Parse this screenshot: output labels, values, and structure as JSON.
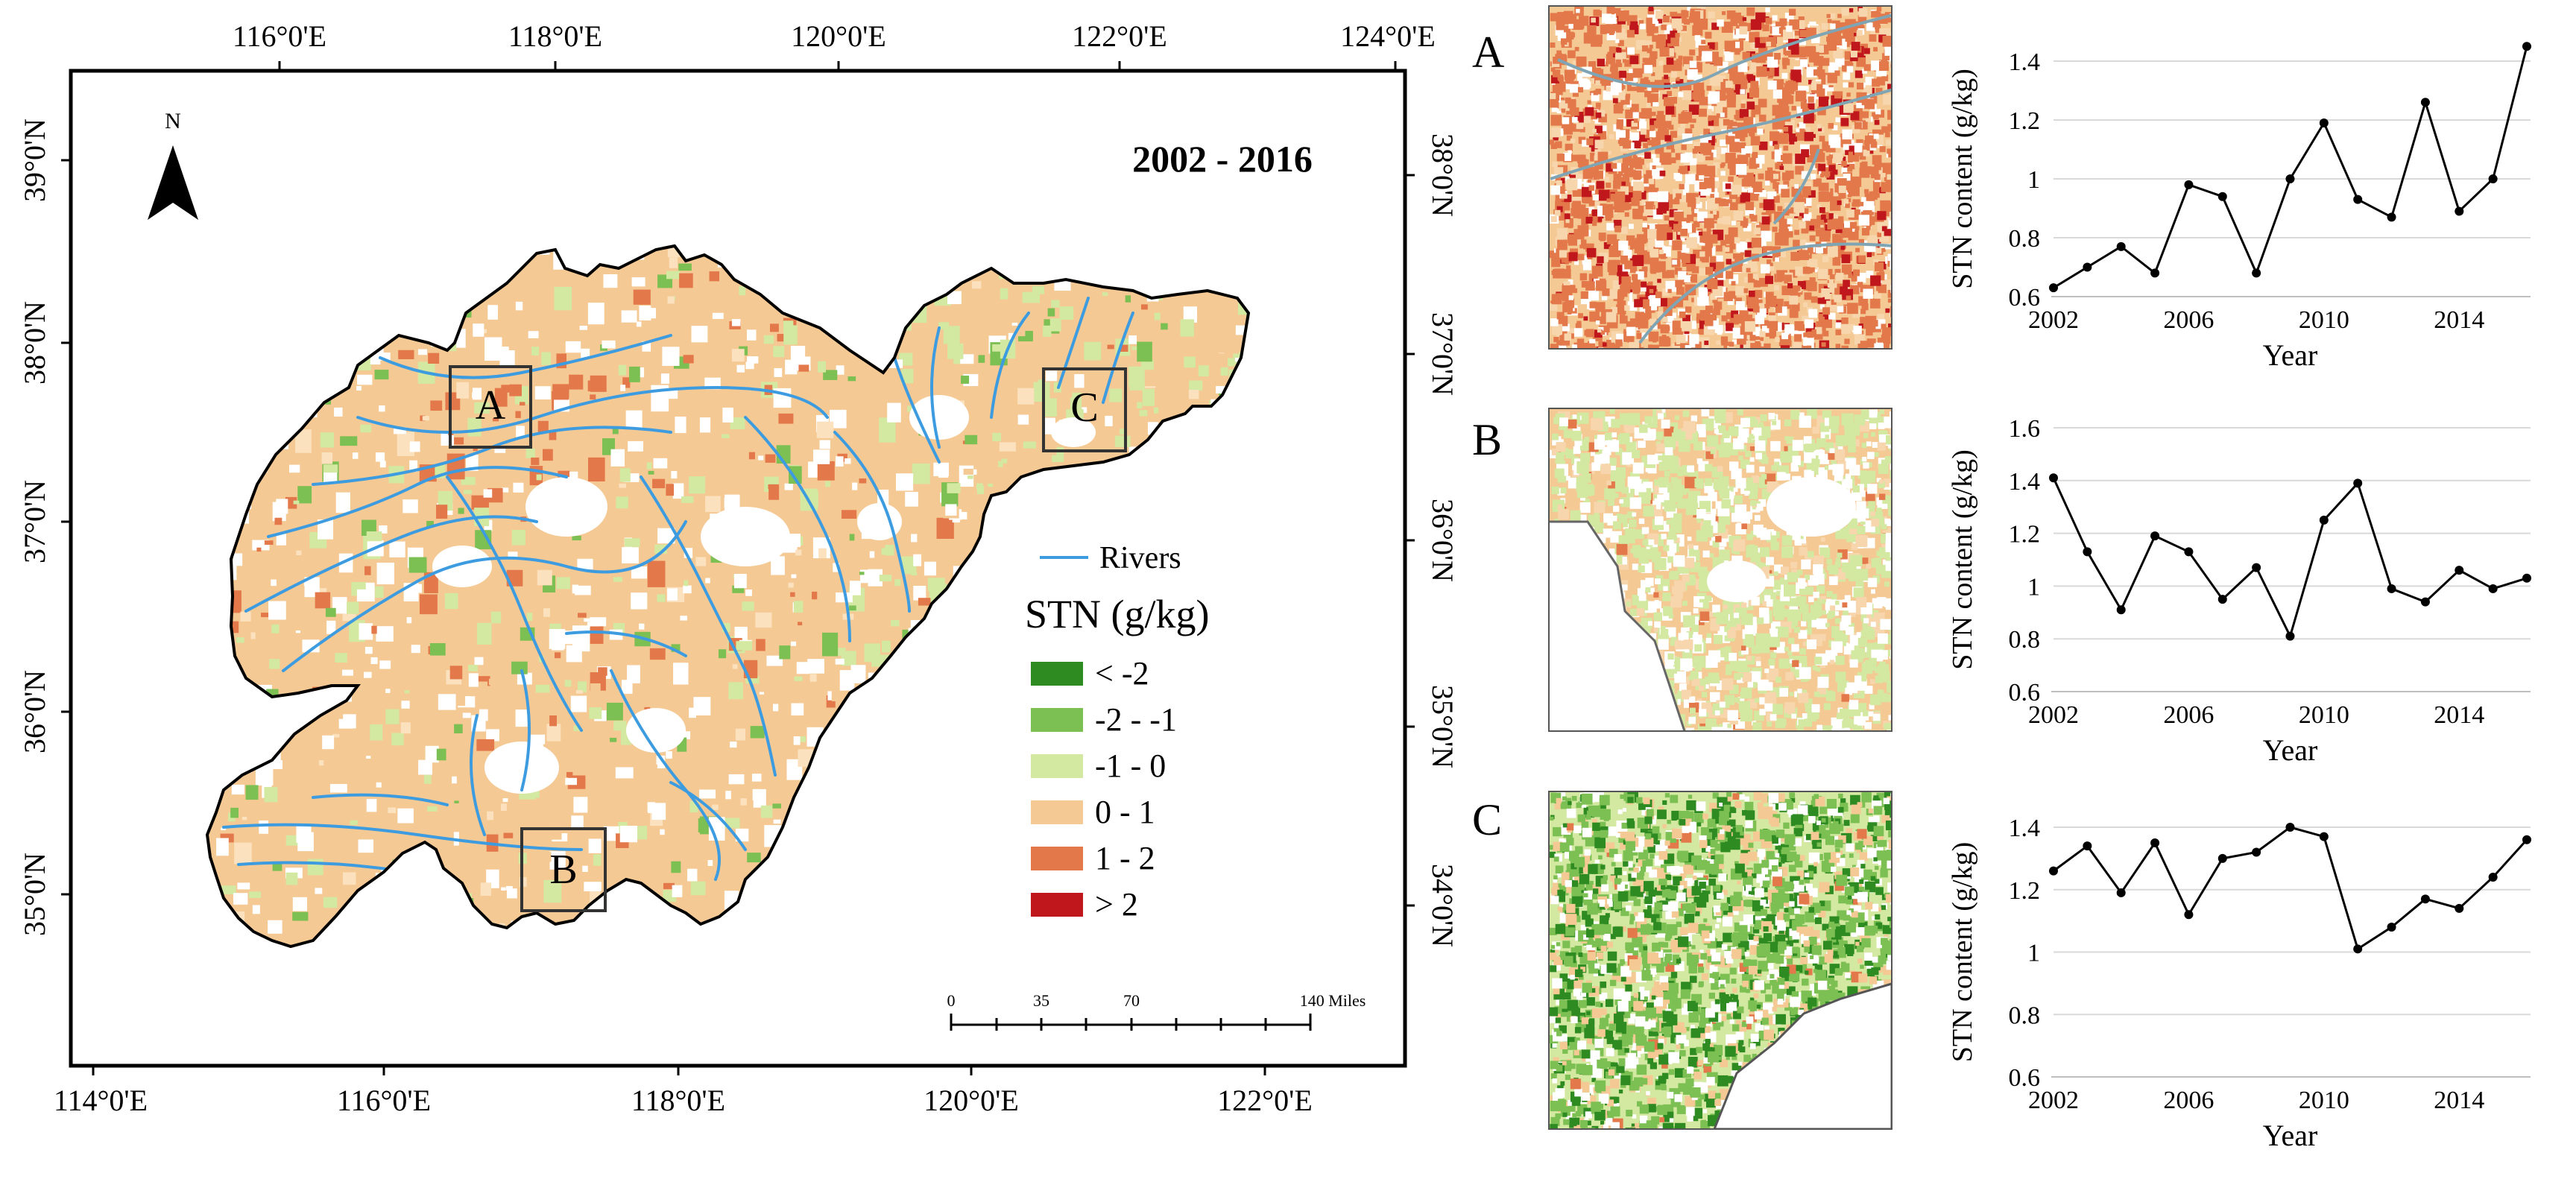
{
  "main_map": {
    "title": "2002 - 2016",
    "north_label": "N",
    "top_lon_labels": [
      "116°0'E",
      "118°0'E",
      "120°0'E",
      "122°0'E",
      "124°0'E"
    ],
    "bottom_lon_labels": [
      "114°0'E",
      "116°0'E",
      "118°0'E",
      "120°0'E",
      "122°0'E"
    ],
    "left_lat_labels": [
      "39°0'N",
      "38°0'N",
      "37°0'N",
      "36°0'N",
      "35°0'N"
    ],
    "right_lat_labels": [
      "38°0'N",
      "37°0'N",
      "36°0'N",
      "35°0'N",
      "34°0'N"
    ],
    "boxes": [
      "A",
      "B",
      "C"
    ],
    "legend": {
      "rivers_label": "Rivers",
      "title": "STN (g/kg)",
      "items": [
        {
          "label": "< -2",
          "color": "#2e8b22"
        },
        {
          "label": "-2 - -1",
          "color": "#7cbf52"
        },
        {
          "label": "-1 - 0",
          "color": "#d3e8a0"
        },
        {
          "label": "0 - 1",
          "color": "#f5c994"
        },
        {
          "label": "1 - 2",
          "color": "#e3784a"
        },
        {
          "label": "> 2",
          "color": "#c0171c"
        }
      ]
    },
    "scale_bar": {
      "labels": [
        "0",
        "35",
        "70",
        "140 Miles"
      ]
    },
    "colors": {
      "river": "#3d9be0",
      "land": "#f5c994",
      "boundary": "#000000"
    }
  },
  "panels": [
    {
      "letter": "A"
    },
    {
      "letter": "B"
    },
    {
      "letter": "C"
    }
  ],
  "chart_data": [
    {
      "type": "line",
      "panel": "A",
      "xlabel": "Year",
      "ylabel": "STN content (g/kg)",
      "x": [
        2002,
        2003,
        2004,
        2005,
        2006,
        2007,
        2008,
        2009,
        2010,
        2011,
        2012,
        2013,
        2014,
        2015,
        2016
      ],
      "values": [
        0.63,
        0.7,
        0.77,
        0.68,
        0.98,
        0.94,
        0.68,
        1.0,
        1.19,
        0.93,
        0.87,
        1.26,
        0.89,
        1.0,
        1.45
      ],
      "ylim": [
        0.6,
        1.4
      ],
      "yticks": [
        "0.6",
        "0.8",
        "1",
        "1.2",
        "1.4"
      ],
      "xticks": [
        "2002",
        "2006",
        "2010",
        "2014"
      ]
    },
    {
      "type": "line",
      "panel": "B",
      "xlabel": "Year",
      "ylabel": "STN content (g/kg)",
      "x": [
        2002,
        2003,
        2004,
        2005,
        2006,
        2007,
        2008,
        2009,
        2010,
        2011,
        2012,
        2013,
        2014,
        2015,
        2016
      ],
      "values": [
        1.41,
        1.13,
        0.91,
        1.19,
        1.13,
        0.95,
        1.07,
        0.81,
        1.25,
        1.39,
        0.99,
        0.94,
        1.06,
        0.99,
        1.03
      ],
      "ylim": [
        0.6,
        1.6
      ],
      "yticks": [
        "0.6",
        "0.8",
        "1",
        "1.2",
        "1.4",
        "1.6"
      ],
      "xticks": [
        "2002",
        "2006",
        "2010",
        "2014"
      ]
    },
    {
      "type": "line",
      "panel": "C",
      "xlabel": "Year",
      "ylabel": "STN content (g/kg)",
      "x": [
        2002,
        2003,
        2004,
        2005,
        2006,
        2007,
        2008,
        2009,
        2010,
        2011,
        2012,
        2013,
        2014,
        2015,
        2016
      ],
      "values": [
        1.26,
        1.34,
        1.19,
        1.35,
        1.12,
        1.3,
        1.32,
        1.4,
        1.37,
        1.01,
        1.08,
        1.17,
        1.14,
        1.24,
        1.36
      ],
      "ylim": [
        0.6,
        1.4
      ],
      "yticks": [
        "0.6",
        "0.8",
        "1",
        "1.2",
        "1.4"
      ],
      "xticks": [
        "2002",
        "2006",
        "2010",
        "2014"
      ]
    }
  ]
}
